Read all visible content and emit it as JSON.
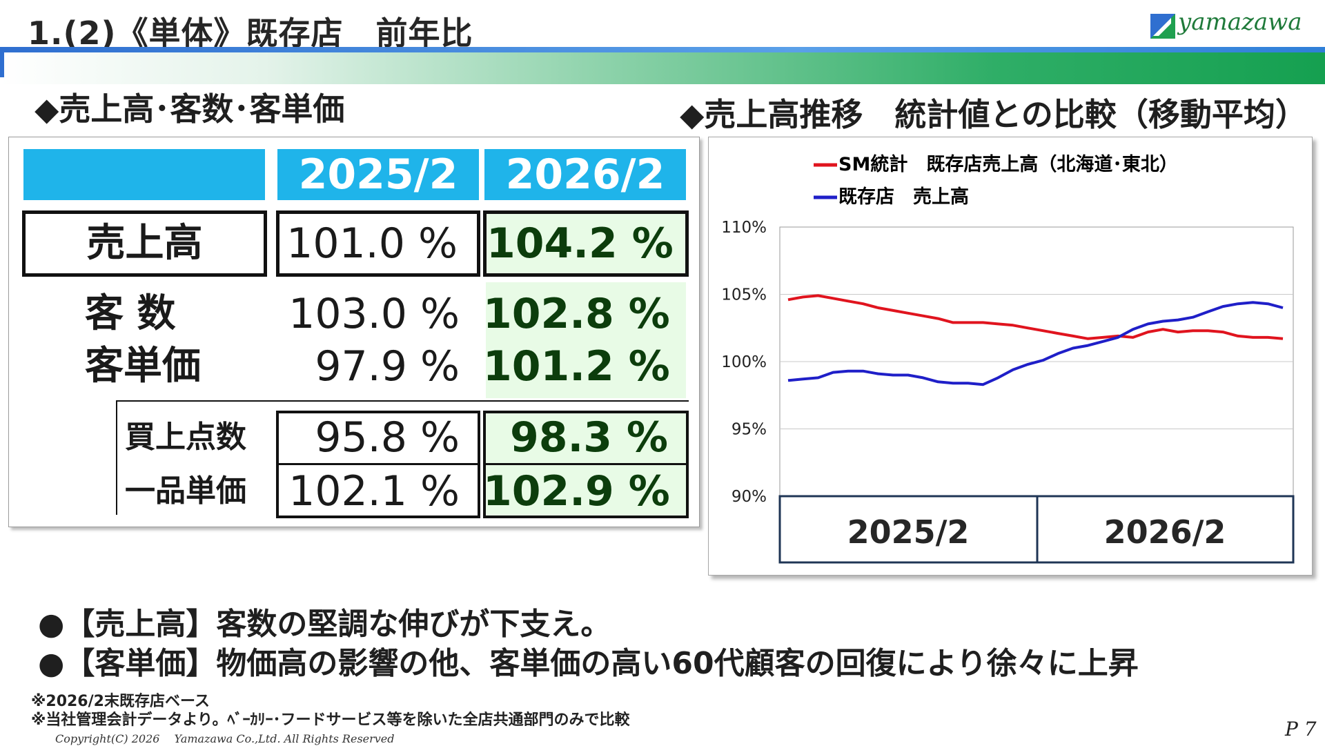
{
  "header": {
    "title": "1.(2)《単体》既存店　前年比",
    "logo_text": "yamazawa"
  },
  "left_section": {
    "title": "◆売上高･客数･客単価",
    "columns": [
      "2025/2",
      "2026/2"
    ],
    "rows": {
      "sales": {
        "label": "売上高",
        "v2025": "101.0 %",
        "v2026": "104.2 %"
      },
      "customers": {
        "label": "客 数",
        "v2025": "103.0 %",
        "v2026": "102.8 %"
      },
      "unit_price": {
        "label": "客単価",
        "v2025": "97.9 %",
        "v2026": "101.2 %"
      },
      "items": {
        "label": "買上点数",
        "v2025": "95.8 %",
        "v2026": "98.3 %"
      },
      "item_price": {
        "label": "一品単価",
        "v2025": "102.1 %",
        "v2026": "102.9 %"
      }
    }
  },
  "right_section": {
    "title": "◆売上高推移　統計値との比較（移動平均）"
  },
  "chart_data": {
    "type": "line",
    "legend": [
      "SM統計　既存店売上高（北海道･東北）",
      "既存店　売上高"
    ],
    "legend_placement": "top-left",
    "y_ticks": [
      "110%",
      "105%",
      "100%",
      "95%",
      "90%"
    ],
    "ylim": [
      90,
      110
    ],
    "grid": true,
    "x_period_labels": [
      "2025/2",
      "2026/2"
    ],
    "series": [
      {
        "name": "SM統計　既存店売上高（北海道･東北）",
        "color": "#e0141e",
        "values": [
          104.6,
          104.8,
          104.9,
          104.7,
          104.5,
          104.3,
          104.0,
          103.8,
          103.6,
          103.4,
          103.2,
          102.9,
          102.9,
          102.9,
          102.8,
          102.7,
          102.5,
          102.3,
          102.1,
          101.9,
          101.7,
          101.8,
          101.9,
          101.8,
          102.2,
          102.4,
          102.2,
          102.3,
          102.3,
          102.2,
          101.9,
          101.8,
          101.8,
          101.7
        ]
      },
      {
        "name": "既存店　売上高",
        "color": "#1f1fc8",
        "values": [
          98.6,
          98.7,
          98.8,
          99.2,
          99.3,
          99.3,
          99.1,
          99.0,
          99.0,
          98.8,
          98.5,
          98.4,
          98.4,
          98.3,
          98.8,
          99.4,
          99.8,
          100.1,
          100.6,
          101.0,
          101.2,
          101.5,
          101.8,
          102.4,
          102.8,
          103.0,
          103.1,
          103.3,
          103.7,
          104.1,
          104.3,
          104.4,
          104.3,
          104.0
        ]
      }
    ]
  },
  "bullets": [
    "●【売上高】客数の堅調な伸びが下支え。",
    "●【客単価】物価高の影響の他、客単価の高い60代顧客の回復により徐々に上昇"
  ],
  "notes": [
    "※2026/2末既存店ベース",
    "※当社管理会計データより。ﾍﾞｰｶﾘｰ･フードサービス等を除いた全店共通部門のみで比較"
  ],
  "footer": {
    "copyright": "Copyright(C) 2026　 Yamazawa Co.,Ltd.  All Rights Reserved",
    "page_number": "P 7"
  },
  "colors": {
    "header_cell": "#1fb4ea",
    "highlight_cell": "#e8fbe6",
    "band_blue": "#2f6fd0",
    "band_green": "#15a050"
  }
}
